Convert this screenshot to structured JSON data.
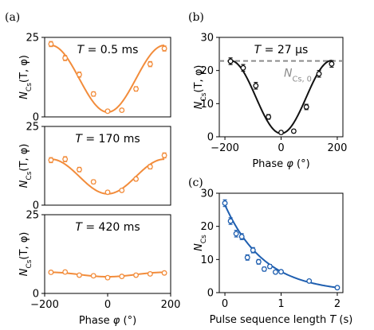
{
  "chart_data": [
    {
      "panel_label": "(a)",
      "type": "scatter",
      "annotation": "T = 0.5 ms",
      "ylabel": "N_Cs(T, φ)",
      "xlim": [
        -200,
        200
      ],
      "ylim": [
        0,
        25
      ],
      "yticks": [
        0,
        25
      ],
      "color": "#f28c3b",
      "x": [
        -180,
        -135,
        -90,
        -45,
        0,
        45,
        90,
        135,
        180
      ],
      "y": [
        22.9,
        18.5,
        13.3,
        7.2,
        1.8,
        2.1,
        8.8,
        16.6,
        21.5
      ],
      "yerr": [
        0.8,
        0.8,
        0.8,
        0.7,
        0.5,
        0.5,
        0.7,
        0.8,
        0.8
      ],
      "fit": {
        "offset": 12.0,
        "amplitude": 10.5,
        "phase_offset": 0
      }
    },
    {
      "type": "scatter",
      "annotation": "T = 170 ms",
      "ylabel": "N_Cs(T, φ)",
      "xlim": [
        -200,
        200
      ],
      "ylim": [
        0,
        25
      ],
      "yticks": [
        0,
        25
      ],
      "color": "#f28c3b",
      "x": [
        -180,
        -135,
        -90,
        -45,
        0,
        45,
        90,
        135,
        180
      ],
      "y": [
        14.3,
        14.6,
        11.3,
        7.4,
        4.1,
        4.7,
        8.3,
        12.2,
        15.8
      ],
      "yerr": [
        0.8,
        0.8,
        0.7,
        0.6,
        0.5,
        0.5,
        0.6,
        0.7,
        0.8
      ],
      "fit": {
        "offset": 9.1,
        "amplitude": 5.5,
        "phase_offset": 0
      }
    },
    {
      "type": "scatter",
      "annotation": "T = 420 ms",
      "ylabel": "N_Cs(T, φ)",
      "xlabel": "Phase φ (°)",
      "xlim": [
        -200,
        200
      ],
      "ylim": [
        0,
        25
      ],
      "yticks": [
        0,
        25
      ],
      "xticks": [
        -200,
        0,
        200
      ],
      "color": "#f28c3b",
      "x": [
        -180,
        -135,
        -90,
        -45,
        0,
        45,
        90,
        135,
        180
      ],
      "y": [
        6.7,
        6.8,
        5.8,
        5.6,
        5.0,
        5.4,
        5.8,
        6.2,
        6.5
      ],
      "yerr": [
        0.5,
        0.5,
        0.5,
        0.5,
        0.5,
        0.5,
        0.5,
        0.5,
        0.5
      ],
      "fit": {
        "offset": 6.0,
        "amplitude": 0.7,
        "phase_offset": 0
      }
    },
    {
      "panel_label": "(b)",
      "type": "scatter",
      "annotation": "T = 27 μs",
      "ylabel": "N_Cs(T, φ)",
      "xlabel": "Phase φ (°)",
      "xlim": [
        -220,
        220
      ],
      "ylim": [
        0,
        30
      ],
      "yticks": [
        0,
        10,
        20,
        30
      ],
      "xticks": [
        -200,
        0,
        200
      ],
      "color": "#111111",
      "x": [
        -180,
        -135,
        -90,
        -45,
        0,
        45,
        90,
        135,
        180
      ],
      "y": [
        22.8,
        20.8,
        15.4,
        6.0,
        1.3,
        1.7,
        9.0,
        19.0,
        22.0
      ],
      "yerr": [
        1.0,
        1.0,
        1.0,
        0.7,
        0.5,
        0.5,
        0.8,
        1.0,
        1.0
      ],
      "fit": {
        "offset": 12.0,
        "amplitude": 11.0,
        "phase_offset": 0
      },
      "reference_line": {
        "y": 22.9,
        "label": "N_Cs,0",
        "color": "#8c8c8c"
      }
    },
    {
      "panel_label": "(c)",
      "type": "scatter",
      "ylabel": "N_Cs",
      "xlabel": "Pulse sequence length T (s)",
      "xlim": [
        -0.1,
        2.1
      ],
      "ylim": [
        0,
        30
      ],
      "yticks": [
        0,
        10,
        20,
        30
      ],
      "xticks": [
        0,
        1,
        2
      ],
      "color": "#1f5fb0",
      "x": [
        0.0,
        0.1,
        0.2,
        0.3,
        0.4,
        0.5,
        0.6,
        0.7,
        0.8,
        0.9,
        1.0,
        1.5,
        2.0
      ],
      "y": [
        27.0,
        21.6,
        17.8,
        16.9,
        10.6,
        12.8,
        9.3,
        7.1,
        7.9,
        6.2,
        6.3,
        3.5,
        1.5
      ],
      "yerr": [
        1.0,
        1.0,
        1.0,
        0.9,
        0.8,
        0.8,
        0.7,
        0.6,
        0.6,
        0.5,
        0.5,
        0.4,
        0.3
      ],
      "fit": {
        "type": "exponential",
        "amplitude": 26.5,
        "decay_time_s": 0.7
      }
    }
  ]
}
